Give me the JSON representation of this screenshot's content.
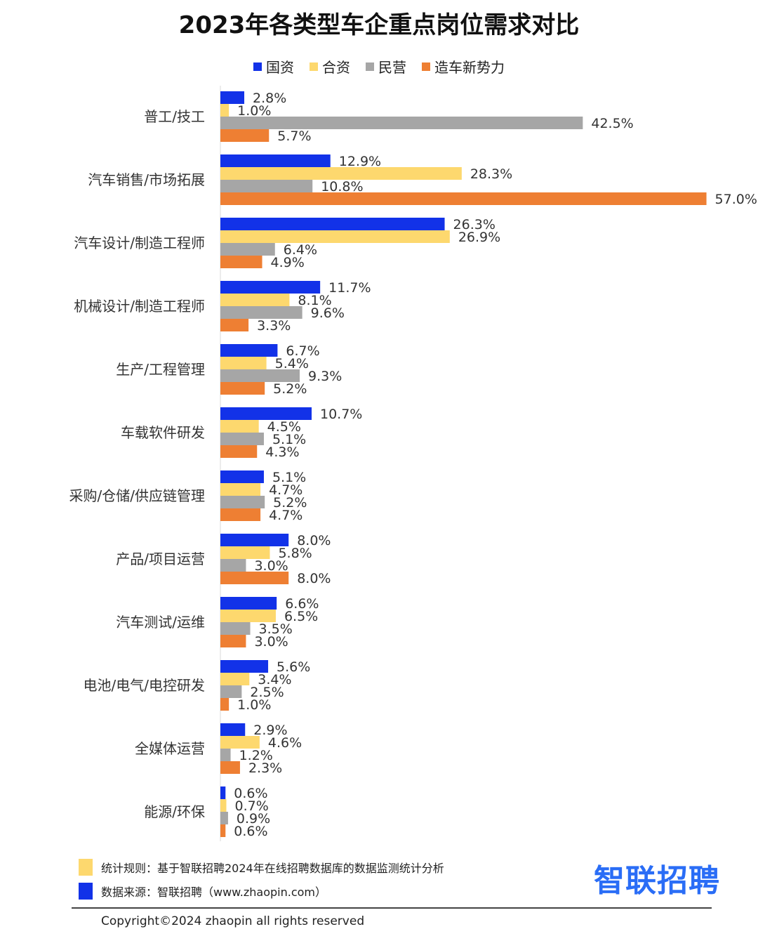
{
  "title": "2023年各类型车企重点岗位需求对比",
  "colors": {
    "guozi": "#1232e8",
    "hezi": "#fdd86e",
    "minying": "#a6a6a6",
    "xinshili": "#ee7f33",
    "logo": "#2a6df6"
  },
  "chart_data": {
    "type": "bar",
    "orientation": "horizontal",
    "title": "2023年各类型车企重点岗位需求对比",
    "legend_position": "top",
    "grid": false,
    "unit": "%",
    "categories": [
      "普工/技工",
      "汽车销售/市场拓展",
      "汽车设计/制造工程师",
      "机械设计/制造工程师",
      "生产/工程管理",
      "车载软件研发",
      "采购/仓储/供应链管理",
      "产品/项目运营",
      "汽车测试/运维",
      "电池/电气/电控研发",
      "全媒体运营",
      "能源/环保"
    ],
    "series": [
      {
        "name": "国资",
        "color": "#1232e8",
        "values": [
          2.8,
          12.9,
          26.3,
          11.7,
          6.7,
          10.7,
          5.1,
          8.0,
          6.6,
          5.6,
          2.9,
          0.6
        ],
        "labels": [
          "2.8%",
          "12.9%",
          "26.3%",
          "11.7%",
          "6.7%",
          "10.7%",
          "5.1%",
          "8.0%",
          "6.6%",
          "5.6%",
          "2.9%",
          "0.6%"
        ]
      },
      {
        "name": "合资",
        "color": "#fdd86e",
        "values": [
          1.0,
          28.3,
          26.9,
          8.1,
          5.4,
          4.5,
          4.7,
          5.8,
          6.5,
          3.4,
          4.6,
          0.7
        ],
        "labels": [
          "1.0%",
          "28.3%",
          "26.9%",
          "8.1%",
          "5.4%",
          "4.5%",
          "4.7%",
          "5.8%",
          "6.5%",
          "3.4%",
          "4.6%",
          "0.7%"
        ]
      },
      {
        "name": "民营",
        "color": "#a6a6a6",
        "values": [
          42.5,
          10.8,
          6.4,
          9.6,
          9.3,
          5.1,
          5.2,
          3.0,
          3.5,
          2.5,
          1.2,
          0.9
        ],
        "labels": [
          "42.5%",
          "10.8%",
          "6.4%",
          "9.6%",
          "9.3%",
          "5.1%",
          "5.2%",
          "3.0%",
          "3.5%",
          "2.5%",
          "1.2%",
          "0.9%"
        ]
      },
      {
        "name": "造车新势力",
        "color": "#ee7f33",
        "values": [
          5.7,
          57.0,
          4.9,
          3.3,
          5.2,
          4.3,
          4.7,
          8.0,
          3.0,
          1.0,
          2.3,
          0.6
        ],
        "labels": [
          "5.7%",
          "57.0%",
          "4.9%",
          "3.3%",
          "5.2%",
          "4.3%",
          "4.7%",
          "8.0%",
          "3.0%",
          "1.0%",
          "2.3%",
          "0.6%"
        ]
      }
    ]
  },
  "footer": {
    "rule": "统计规则：基于智联招聘2024年在线招聘数据库的数据监测统计分析",
    "source": "数据来源：智联招聘（www.zhaopin.com）",
    "logo": "智联招聘",
    "copyright": "Copyright©2024 zhaopin all rights reserved"
  }
}
